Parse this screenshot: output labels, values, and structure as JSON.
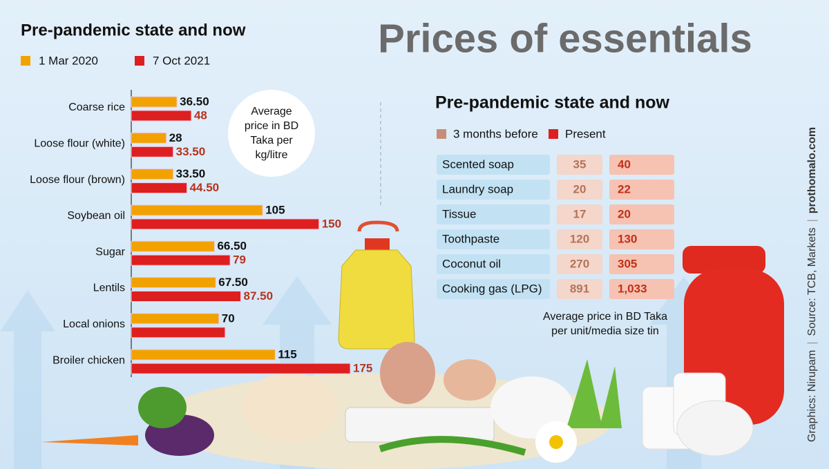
{
  "title": "Prices of essentials",
  "chart_data": {
    "type": "bar",
    "orientation": "horizontal",
    "title": "Pre-pandemic state and now",
    "categories": [
      "Coarse rice",
      "Loose flour (white)",
      "Loose flour (brown)",
      "Soybean oil",
      "Sugar",
      "Lentils",
      "Local onions",
      "Broiler chicken"
    ],
    "series": [
      {
        "name": "1 Mar 2020",
        "color": "#f2a200",
        "values": [
          36.5,
          28,
          33.5,
          105,
          66.5,
          67.5,
          70,
          115
        ],
        "value_labels": [
          "36.50",
          "28",
          "33.50",
          "105",
          "66.50",
          "67.50",
          "70",
          "115"
        ]
      },
      {
        "name": "7 Oct 2021",
        "color": "#dd1f1f",
        "values": [
          48,
          33.5,
          44.5,
          150,
          79,
          87.5,
          75,
          175
        ],
        "value_labels": [
          "48",
          "33.50",
          "44.50",
          "150",
          "79",
          "87.50",
          null,
          "175"
        ]
      }
    ],
    "annotation": [
      "Average",
      "price in BD",
      "Taka per",
      "kg/litre"
    ]
  },
  "table": {
    "title": "Pre-pandemic state and now",
    "columns": [
      "3 months before",
      "Present"
    ],
    "rows": [
      [
        "Scented soap",
        "35",
        "40"
      ],
      [
        "Laundry soap",
        "20",
        "22"
      ],
      [
        "Tissue",
        "17",
        "20"
      ],
      [
        "Toothpaste",
        "120",
        "130"
      ],
      [
        "Coconut oil",
        "270",
        "305"
      ],
      [
        "Cooking gas (LPG)",
        "891",
        "1,033"
      ]
    ],
    "note": [
      "Average price in BD Taka",
      "per unit/media size tin"
    ]
  },
  "credits": [
    "Graphics: Nirupam",
    "Source: TCB, Markets",
    "prothomalo.com"
  ]
}
